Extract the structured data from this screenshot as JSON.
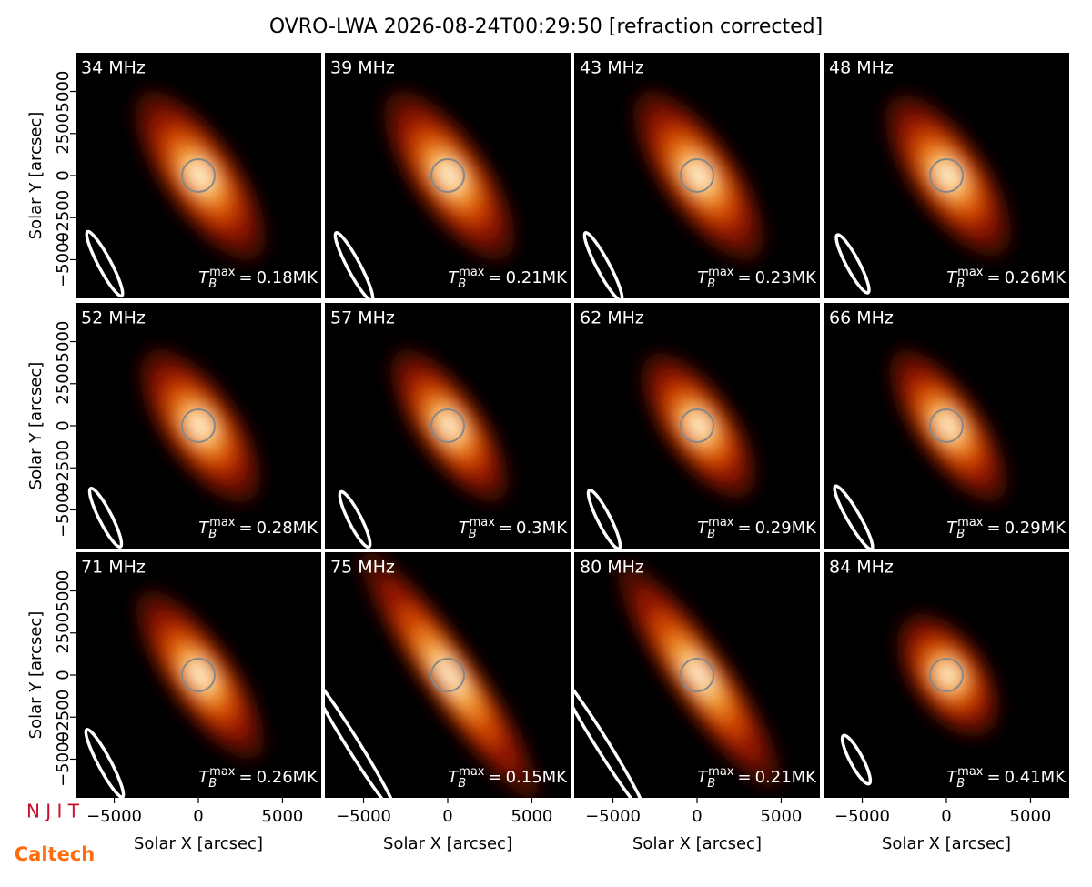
{
  "chart_data": {
    "type": "image-grid",
    "title": "OVRO-LWA 2026-08-24T00:29:50 [refraction corrected]",
    "xlabel": "Solar X [arcsec]",
    "ylabel": "Solar Y [arcsec]",
    "xlim": [
      -7300,
      7300
    ],
    "ylim": [
      -7300,
      7300
    ],
    "xticks": [
      {
        "value": -5000,
        "label": "−5000"
      },
      0,
      5000
    ],
    "yticks": [
      {
        "value": -5000,
        "label": "−5000"
      },
      {
        "value": -2500,
        "label": "−2500"
      },
      0,
      2500,
      5000
    ],
    "tb_symbol": "T",
    "tb_sub": "B",
    "tb_sup": "max",
    "tb_relation": "=",
    "panels": [
      {
        "frequency": "34 MHz",
        "tb_max": "0.18MK"
      },
      {
        "frequency": "39 MHz",
        "tb_max": "0.21MK"
      },
      {
        "frequency": "43 MHz",
        "tb_max": "0.23MK"
      },
      {
        "frequency": "48 MHz",
        "tb_max": "0.26MK"
      },
      {
        "frequency": "52 MHz",
        "tb_max": "0.28MK"
      },
      {
        "frequency": "57 MHz",
        "tb_max": "0.3MK"
      },
      {
        "frequency": "62 MHz",
        "tb_max": "0.29MK"
      },
      {
        "frequency": "66 MHz",
        "tb_max": "0.29MK"
      },
      {
        "frequency": "71 MHz",
        "tb_max": "0.26MK"
      },
      {
        "frequency": "75 MHz",
        "tb_max": "0.15MK"
      },
      {
        "frequency": "80 MHz",
        "tb_max": "0.21MK"
      },
      {
        "frequency": "84 MHz",
        "tb_max": "0.41MK"
      }
    ]
  },
  "logos": {
    "top": "N J I T",
    "bottom": "Caltech"
  }
}
